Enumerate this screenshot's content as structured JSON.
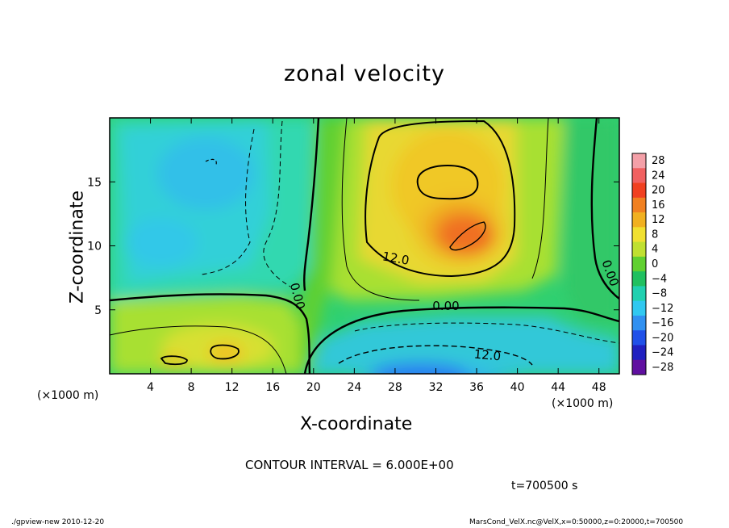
{
  "chart_data": {
    "type": "heatmap",
    "title": "zonal velocity",
    "xlabel": "X-coordinate",
    "ylabel": "Z-coordinate",
    "x_unit_left": "(×1000 m)",
    "x_unit_right": "(×1000 m)",
    "xlim": [
      0,
      50
    ],
    "ylim": [
      0,
      20
    ],
    "xticks": [
      4,
      8,
      12,
      16,
      20,
      24,
      28,
      32,
      36,
      40,
      44,
      48
    ],
    "xtick_labels": [
      "4",
      "8",
      "12",
      "16",
      "20",
      "24",
      "28",
      "32",
      "36",
      "40",
      "44",
      "48"
    ],
    "yticks": [
      5,
      10,
      15
    ],
    "ytick_labels": [
      "5",
      "10",
      "15"
    ],
    "colorbar": {
      "levels": [
        28,
        24,
        20,
        16,
        12,
        8,
        4,
        0,
        -4,
        -8,
        -12,
        -16,
        -20,
        -24,
        -28
      ],
      "labels": [
        "28",
        "24",
        "20",
        "16",
        "12",
        "8",
        "4",
        "0",
        "−4",
        "−8",
        "−12",
        "−16",
        "−20",
        "−24",
        "−28"
      ],
      "colors": [
        "#f4a0a8",
        "#f06060",
        "#f04020",
        "#f08020",
        "#f0b020",
        "#f0e030",
        "#c0e030",
        "#60d030",
        "#20c060",
        "#20d0b0",
        "#30c8f0",
        "#3090f0",
        "#2050e8",
        "#2020c0",
        "#6010a0"
      ]
    },
    "contour_labels": [
      "12.0",
      "0.00",
      "0.00",
      "0.00",
      "12.0"
    ],
    "contour_interval": "CONTOUR INTERVAL = 6.000E+00",
    "time": "t=700500 s"
  },
  "footer": {
    "left": "./gpview-new  2010-12-20",
    "right": "MarsCond_VelX.nc@VelX,x=0:50000,z=0:20000,t=700500"
  }
}
